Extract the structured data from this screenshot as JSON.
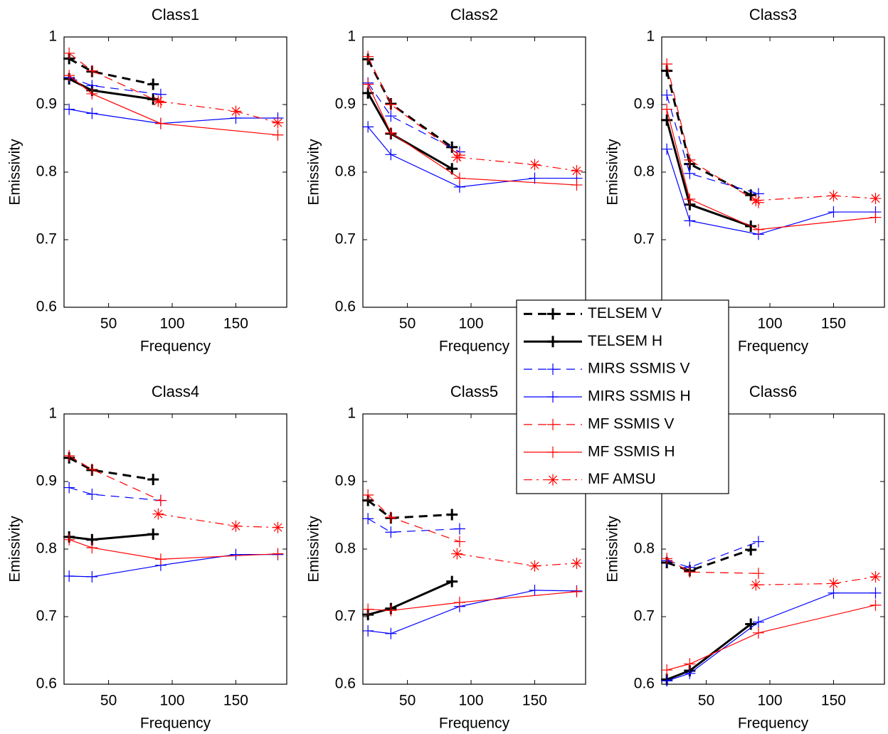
{
  "chart_data": [
    {
      "type": "line",
      "title": "Class1",
      "x_label": "Frequency",
      "y_label": "Emissivity",
      "xlim": [
        15,
        190
      ],
      "xticks": [
        50,
        100,
        150
      ],
      "ylim": [
        0.6,
        1
      ],
      "yticks": [
        0.6,
        0.7,
        0.8,
        0.9,
        1
      ],
      "series": [
        {
          "name": "TELSEM V",
          "color": "#000000",
          "linestyle": "dashed",
          "marker": "plus",
          "linewidth": 3,
          "x": [
            19,
            37,
            85
          ],
          "values": [
            0.968,
            0.949,
            0.93
          ]
        },
        {
          "name": "TELSEM H",
          "color": "#000000",
          "linestyle": "solid",
          "marker": "plus",
          "linewidth": 3,
          "x": [
            19,
            37,
            85
          ],
          "values": [
            0.938,
            0.921,
            0.908
          ]
        },
        {
          "name": "MIRS SSMIS V",
          "color": "#0000ff",
          "linestyle": "dashed",
          "marker": "plus",
          "linewidth": 1.2,
          "x": [
            19,
            37,
            91
          ],
          "values": [
            0.94,
            0.928,
            0.915
          ]
        },
        {
          "name": "MIRS SSMIS H",
          "color": "#0000ff",
          "linestyle": "solid",
          "marker": "plus",
          "linewidth": 1.2,
          "x": [
            19,
            37,
            91,
            150,
            183
          ],
          "values": [
            0.893,
            0.887,
            0.872,
            0.88,
            0.88
          ]
        },
        {
          "name": "MF SSMIS V",
          "color": "#ff0000",
          "linestyle": "dashed",
          "marker": "plus",
          "linewidth": 1.2,
          "x": [
            19,
            37,
            91
          ],
          "values": [
            0.976,
            0.95,
            0.903
          ]
        },
        {
          "name": "MF SSMIS H",
          "color": "#ff0000",
          "linestyle": "solid",
          "marker": "plus",
          "linewidth": 1.2,
          "x": [
            19,
            37,
            91,
            183
          ],
          "values": [
            0.943,
            0.916,
            0.872,
            0.855
          ]
        },
        {
          "name": "MF AMSU",
          "color": "#ff0000",
          "linestyle": "dashdot",
          "marker": "star",
          "linewidth": 1.2,
          "x": [
            89,
            150,
            183
          ],
          "values": [
            0.905,
            0.89,
            0.873
          ]
        }
      ]
    },
    {
      "type": "line",
      "title": "Class2",
      "x_label": "Frequency",
      "y_label": "Emissivity",
      "xlim": [
        15,
        190
      ],
      "xticks": [
        50,
        100,
        150
      ],
      "ylim": [
        0.6,
        1
      ],
      "yticks": [
        0.6,
        0.7,
        0.8,
        0.9,
        1
      ],
      "legend": "center",
      "series": [
        {
          "name": "TELSEM V",
          "color": "#000000",
          "linestyle": "dashed",
          "marker": "plus",
          "linewidth": 3,
          "x": [
            19,
            37,
            85
          ],
          "values": [
            0.967,
            0.901,
            0.837
          ]
        },
        {
          "name": "TELSEM H",
          "color": "#000000",
          "linestyle": "solid",
          "marker": "plus",
          "linewidth": 3,
          "x": [
            19,
            37,
            85
          ],
          "values": [
            0.917,
            0.857,
            0.805
          ]
        },
        {
          "name": "MIRS SSMIS V",
          "color": "#0000ff",
          "linestyle": "dashed",
          "marker": "plus",
          "linewidth": 1.2,
          "x": [
            19,
            37,
            91
          ],
          "values": [
            0.932,
            0.883,
            0.83
          ]
        },
        {
          "name": "MIRS SSMIS H",
          "color": "#0000ff",
          "linestyle": "solid",
          "marker": "plus",
          "linewidth": 1.2,
          "x": [
            19,
            37,
            91,
            150,
            183
          ],
          "values": [
            0.867,
            0.826,
            0.778,
            0.791,
            0.791
          ]
        },
        {
          "name": "MF SSMIS V",
          "color": "#ff0000",
          "linestyle": "dashed",
          "marker": "plus",
          "linewidth": 1.2,
          "x": [
            19,
            37,
            91
          ],
          "values": [
            0.971,
            0.9,
            0.825
          ]
        },
        {
          "name": "MF SSMIS H",
          "color": "#ff0000",
          "linestyle": "solid",
          "marker": "plus",
          "linewidth": 1.2,
          "x": [
            19,
            37,
            91,
            183
          ],
          "values": [
            0.93,
            0.858,
            0.791,
            0.781
          ]
        },
        {
          "name": "MF AMSU",
          "color": "#ff0000",
          "linestyle": "dashdot",
          "marker": "star",
          "linewidth": 1.2,
          "x": [
            89,
            150,
            183
          ],
          "values": [
            0.822,
            0.811,
            0.802
          ]
        }
      ]
    },
    {
      "type": "line",
      "title": "Class3",
      "x_label": "Frequency",
      "y_label": "Emissivity",
      "xlim": [
        15,
        190
      ],
      "xticks": [
        50,
        100,
        150
      ],
      "ylim": [
        0.6,
        1
      ],
      "yticks": [
        0.6,
        0.7,
        0.8,
        0.9,
        1
      ],
      "series": [
        {
          "name": "TELSEM V",
          "color": "#000000",
          "linestyle": "dashed",
          "marker": "plus",
          "linewidth": 3,
          "x": [
            19,
            37,
            85
          ],
          "values": [
            0.95,
            0.812,
            0.766
          ]
        },
        {
          "name": "TELSEM H",
          "color": "#000000",
          "linestyle": "solid",
          "marker": "plus",
          "linewidth": 3,
          "x": [
            19,
            37,
            85
          ],
          "values": [
            0.877,
            0.752,
            0.72
          ]
        },
        {
          "name": "MIRS SSMIS V",
          "color": "#0000ff",
          "linestyle": "dashed",
          "marker": "plus",
          "linewidth": 1.2,
          "x": [
            19,
            37,
            91
          ],
          "values": [
            0.914,
            0.798,
            0.768
          ]
        },
        {
          "name": "MIRS SSMIS H",
          "color": "#0000ff",
          "linestyle": "solid",
          "marker": "plus",
          "linewidth": 1.2,
          "x": [
            19,
            37,
            91,
            150,
            183
          ],
          "values": [
            0.834,
            0.728,
            0.708,
            0.741,
            0.741
          ]
        },
        {
          "name": "MF SSMIS V",
          "color": "#ff0000",
          "linestyle": "dashed",
          "marker": "plus",
          "linewidth": 1.2,
          "x": [
            19,
            37,
            91
          ],
          "values": [
            0.96,
            0.818,
            0.755
          ]
        },
        {
          "name": "MF SSMIS H",
          "color": "#ff0000",
          "linestyle": "solid",
          "marker": "plus",
          "linewidth": 1.2,
          "x": [
            19,
            37,
            91,
            183
          ],
          "values": [
            0.893,
            0.76,
            0.715,
            0.733
          ]
        },
        {
          "name": "MF AMSU",
          "color": "#ff0000",
          "linestyle": "dashdot",
          "marker": "star",
          "linewidth": 1.2,
          "x": [
            89,
            150,
            183
          ],
          "values": [
            0.758,
            0.765,
            0.761
          ]
        }
      ]
    },
    {
      "type": "line",
      "title": "Class4",
      "x_label": "Frequency",
      "y_label": "Emissivity",
      "xlim": [
        15,
        190
      ],
      "xticks": [
        50,
        100,
        150
      ],
      "ylim": [
        0.6,
        1
      ],
      "yticks": [
        0.6,
        0.7,
        0.8,
        0.9,
        1
      ],
      "series": [
        {
          "name": "TELSEM V",
          "color": "#000000",
          "linestyle": "dashed",
          "marker": "plus",
          "linewidth": 3,
          "x": [
            19,
            37,
            85
          ],
          "values": [
            0.935,
            0.917,
            0.903
          ]
        },
        {
          "name": "TELSEM H",
          "color": "#000000",
          "linestyle": "solid",
          "marker": "plus",
          "linewidth": 3,
          "x": [
            19,
            37,
            85
          ],
          "values": [
            0.818,
            0.814,
            0.822
          ]
        },
        {
          "name": "MIRS SSMIS V",
          "color": "#0000ff",
          "linestyle": "dashed",
          "marker": "plus",
          "linewidth": 1.2,
          "x": [
            19,
            37,
            91
          ],
          "values": [
            0.891,
            0.881,
            0.872
          ]
        },
        {
          "name": "MIRS SSMIS H",
          "color": "#0000ff",
          "linestyle": "solid",
          "marker": "plus",
          "linewidth": 1.2,
          "x": [
            19,
            37,
            91,
            150,
            183
          ],
          "values": [
            0.76,
            0.759,
            0.776,
            0.792,
            0.792
          ]
        },
        {
          "name": "MF SSMIS V",
          "color": "#ff0000",
          "linestyle": "dashed",
          "marker": "plus",
          "linewidth": 1.2,
          "x": [
            19,
            37,
            91
          ],
          "values": [
            0.938,
            0.918,
            0.872
          ]
        },
        {
          "name": "MF SSMIS H",
          "color": "#ff0000",
          "linestyle": "solid",
          "marker": "plus",
          "linewidth": 1.2,
          "x": [
            19,
            37,
            91,
            183
          ],
          "values": [
            0.814,
            0.802,
            0.785,
            0.793
          ]
        },
        {
          "name": "MF AMSU",
          "color": "#ff0000",
          "linestyle": "dashdot",
          "marker": "star",
          "linewidth": 1.2,
          "x": [
            89,
            150,
            183
          ],
          "values": [
            0.852,
            0.834,
            0.832
          ]
        }
      ]
    },
    {
      "type": "line",
      "title": "Class5",
      "x_label": "Frequency",
      "y_label": "Emissivity",
      "xlim": [
        15,
        190
      ],
      "xticks": [
        50,
        100,
        150
      ],
      "ylim": [
        0.6,
        1
      ],
      "yticks": [
        0.6,
        0.7,
        0.8,
        0.9,
        1
      ],
      "series": [
        {
          "name": "TELSEM V",
          "color": "#000000",
          "linestyle": "dashed",
          "marker": "plus",
          "linewidth": 3,
          "x": [
            19,
            37,
            85
          ],
          "values": [
            0.872,
            0.846,
            0.851
          ]
        },
        {
          "name": "TELSEM H",
          "color": "#000000",
          "linestyle": "solid",
          "marker": "plus",
          "linewidth": 3,
          "x": [
            19,
            37,
            85
          ],
          "values": [
            0.703,
            0.712,
            0.752
          ]
        },
        {
          "name": "MIRS SSMIS V",
          "color": "#0000ff",
          "linestyle": "dashed",
          "marker": "plus",
          "linewidth": 1.2,
          "x": [
            19,
            37,
            91
          ],
          "values": [
            0.845,
            0.825,
            0.83
          ]
        },
        {
          "name": "MIRS SSMIS H",
          "color": "#0000ff",
          "linestyle": "solid",
          "marker": "plus",
          "linewidth": 1.2,
          "x": [
            19,
            37,
            91,
            150,
            183
          ],
          "values": [
            0.679,
            0.675,
            0.715,
            0.739,
            0.738
          ]
        },
        {
          "name": "MF SSMIS V",
          "color": "#ff0000",
          "linestyle": "dashed",
          "marker": "plus",
          "linewidth": 1.2,
          "x": [
            19,
            37,
            91
          ],
          "values": [
            0.88,
            0.847,
            0.811
          ]
        },
        {
          "name": "MF SSMIS H",
          "color": "#ff0000",
          "linestyle": "solid",
          "marker": "plus",
          "linewidth": 1.2,
          "x": [
            19,
            37,
            91,
            183
          ],
          "values": [
            0.711,
            0.709,
            0.721,
            0.737
          ]
        },
        {
          "name": "MF AMSU",
          "color": "#ff0000",
          "linestyle": "dashdot",
          "marker": "star",
          "linewidth": 1.2,
          "x": [
            89,
            150,
            183
          ],
          "values": [
            0.793,
            0.775,
            0.779
          ]
        }
      ]
    },
    {
      "type": "line",
      "title": "Class6",
      "x_label": "Frequency",
      "y_label": "Emissivity",
      "xlim": [
        15,
        190
      ],
      "xticks": [
        50,
        100,
        150
      ],
      "ylim": [
        0.6,
        1
      ],
      "yticks": [
        0.6,
        0.7,
        0.8,
        0.9,
        1
      ],
      "series": [
        {
          "name": "TELSEM V",
          "color": "#000000",
          "linestyle": "dashed",
          "marker": "plus",
          "linewidth": 3,
          "x": [
            19,
            37,
            85
          ],
          "values": [
            0.78,
            0.768,
            0.799
          ]
        },
        {
          "name": "TELSEM H",
          "color": "#000000",
          "linestyle": "solid",
          "marker": "plus",
          "linewidth": 3,
          "x": [
            19,
            37,
            85
          ],
          "values": [
            0.607,
            0.62,
            0.689
          ]
        },
        {
          "name": "MIRS SSMIS V",
          "color": "#0000ff",
          "linestyle": "dashed",
          "marker": "plus",
          "linewidth": 1.2,
          "x": [
            19,
            37,
            91
          ],
          "values": [
            0.783,
            0.773,
            0.811
          ]
        },
        {
          "name": "MIRS SSMIS H",
          "color": "#0000ff",
          "linestyle": "solid",
          "marker": "plus",
          "linewidth": 1.2,
          "x": [
            19,
            37,
            91,
            150,
            183
          ],
          "values": [
            0.605,
            0.616,
            0.692,
            0.735,
            0.735
          ]
        },
        {
          "name": "MF SSMIS V",
          "color": "#ff0000",
          "linestyle": "dashed",
          "marker": "plus",
          "linewidth": 1.2,
          "x": [
            19,
            37,
            91
          ],
          "values": [
            0.786,
            0.766,
            0.764
          ]
        },
        {
          "name": "MF SSMIS H",
          "color": "#ff0000",
          "linestyle": "solid",
          "marker": "plus",
          "linewidth": 1.2,
          "x": [
            19,
            37,
            91,
            183
          ],
          "values": [
            0.621,
            0.63,
            0.676,
            0.717
          ]
        },
        {
          "name": "MF AMSU",
          "color": "#ff0000",
          "linestyle": "dashdot",
          "marker": "star",
          "linewidth": 1.2,
          "x": [
            89,
            150,
            183
          ],
          "values": [
            0.747,
            0.749,
            0.759
          ]
        }
      ]
    }
  ]
}
